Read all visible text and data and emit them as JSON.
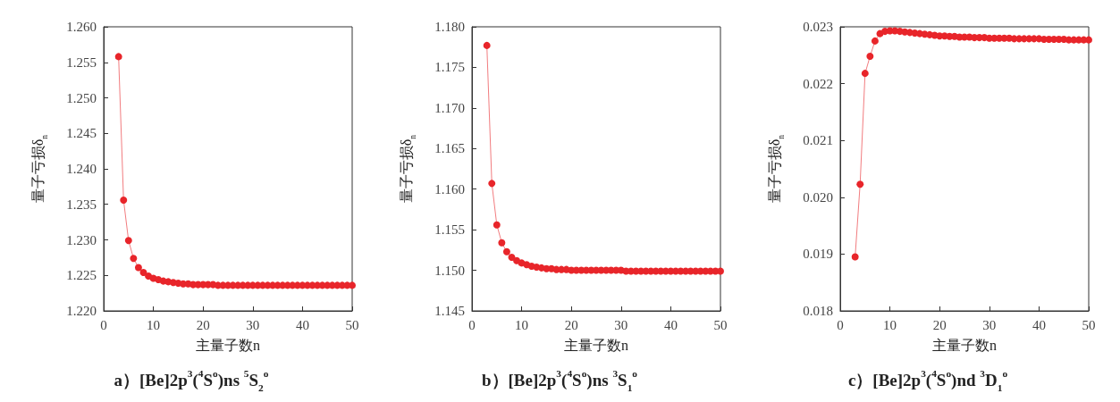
{
  "chart_data": [
    {
      "type": "line",
      "title": "a）[Be]2p$^{3}$($^{4}$S$^{o}$)ns $^{5}$S$_{2}$$^{o}$",
      "xlabel": "主量子数n",
      "ylabel": "量子亏损δ$_{n}$",
      "color": "#e8252a",
      "marker": "circle",
      "line_style": "solid",
      "x": [
        3,
        4,
        5,
        6,
        7,
        8,
        9,
        10,
        11,
        12,
        13,
        14,
        15,
        16,
        17,
        18,
        19,
        20,
        21,
        22,
        23,
        24,
        25,
        26,
        27,
        28,
        29,
        30,
        31,
        32,
        33,
        34,
        35,
        36,
        37,
        38,
        39,
        40,
        41,
        42,
        43,
        44,
        45,
        46,
        47,
        48,
        49,
        50
      ],
      "values": [
        1.2558,
        1.2356,
        1.2299,
        1.2274,
        1.2261,
        1.2254,
        1.2249,
        1.2246,
        1.2244,
        1.2242,
        1.2241,
        1.224,
        1.2239,
        1.2238,
        1.2238,
        1.2237,
        1.2237,
        1.2237,
        1.2237,
        1.2237,
        1.2236,
        1.2236,
        1.2236,
        1.2236,
        1.2236,
        1.2236,
        1.2236,
        1.2236,
        1.2236,
        1.2236,
        1.2236,
        1.2236,
        1.2236,
        1.2236,
        1.2236,
        1.2236,
        1.2236,
        1.2236,
        1.2236,
        1.2236,
        1.2236,
        1.2236,
        1.2236,
        1.2236,
        1.2236,
        1.2236,
        1.2236,
        1.2236
      ],
      "xlim": [
        0,
        50
      ],
      "xticks": [
        0,
        10,
        20,
        30,
        40,
        50
      ],
      "ylim": [
        1.22,
        1.26
      ],
      "yticks": [
        {
          "value": 1.22,
          "label": "1.220"
        },
        {
          "value": 1.225,
          "label": "1.225"
        },
        {
          "value": 1.23,
          "label": "1.230"
        },
        {
          "value": 1.235,
          "label": "1.235"
        },
        {
          "value": 1.24,
          "label": "1.240"
        },
        {
          "value": 1.245,
          "label": "1.245"
        },
        {
          "value": 1.25,
          "label": "1.250"
        },
        {
          "value": 1.255,
          "label": "1.255"
        },
        {
          "value": 1.26,
          "label": "1.260"
        }
      ]
    },
    {
      "type": "line",
      "title": "b）[Be]2p$^{3}$($^{4}$S$^{o}$)ns $^{3}$S$_{1}$$^{o}$",
      "xlabel": "主量子数n",
      "ylabel": "量子亏损δ$_{n}$",
      "color": "#e8252a",
      "marker": "circle",
      "line_style": "solid",
      "x": [
        3,
        4,
        5,
        6,
        7,
        8,
        9,
        10,
        11,
        12,
        13,
        14,
        15,
        16,
        17,
        18,
        19,
        20,
        21,
        22,
        23,
        24,
        25,
        26,
        27,
        28,
        29,
        30,
        31,
        32,
        33,
        34,
        35,
        36,
        37,
        38,
        39,
        40,
        41,
        42,
        43,
        44,
        45,
        46,
        47,
        48,
        49,
        50
      ],
      "values": [
        1.1777,
        1.1607,
        1.1556,
        1.1534,
        1.1523,
        1.1516,
        1.1512,
        1.1509,
        1.1507,
        1.1505,
        1.1504,
        1.1503,
        1.1502,
        1.1502,
        1.1501,
        1.1501,
        1.1501,
        1.15,
        1.15,
        1.15,
        1.15,
        1.15,
        1.15,
        1.15,
        1.15,
        1.15,
        1.15,
        1.15,
        1.1499,
        1.1499,
        1.1499,
        1.1499,
        1.1499,
        1.1499,
        1.1499,
        1.1499,
        1.1499,
        1.1499,
        1.1499,
        1.1499,
        1.1499,
        1.1499,
        1.1499,
        1.1499,
        1.1499,
        1.1499,
        1.1499,
        1.1499
      ],
      "xlim": [
        0,
        50
      ],
      "xticks": [
        0,
        10,
        20,
        30,
        40,
        50
      ],
      "ylim": [
        1.145,
        1.18
      ],
      "yticks": [
        {
          "value": 1.145,
          "label": "1.145"
        },
        {
          "value": 1.15,
          "label": "1.150"
        },
        {
          "value": 1.155,
          "label": "1.155"
        },
        {
          "value": 1.16,
          "label": "1.160"
        },
        {
          "value": 1.165,
          "label": "1.165"
        },
        {
          "value": 1.17,
          "label": "1.170"
        },
        {
          "value": 1.175,
          "label": "1.175"
        },
        {
          "value": 1.18,
          "label": "1.180"
        }
      ]
    },
    {
      "type": "line",
      "title": "c）[Be]2p$^{3}$($^{4}$S$^{o}$)nd $^{3}$D$_{1}$$^{o}$",
      "xlabel": "主量子数n",
      "ylabel": "量子亏损δ$_{n}$",
      "color": "#e8252a",
      "marker": "circle",
      "line_style": "solid",
      "x": [
        3,
        4,
        5,
        6,
        7,
        8,
        9,
        10,
        11,
        12,
        13,
        14,
        15,
        16,
        17,
        18,
        19,
        20,
        21,
        22,
        23,
        24,
        25,
        26,
        27,
        28,
        29,
        30,
        31,
        32,
        33,
        34,
        35,
        36,
        37,
        38,
        39,
        40,
        41,
        42,
        43,
        44,
        45,
        46,
        47,
        48,
        49,
        50
      ],
      "values": [
        0.01895,
        0.02023,
        0.02218,
        0.02248,
        0.02275,
        0.02288,
        0.02292,
        0.02293,
        0.02293,
        0.02292,
        0.02291,
        0.0229,
        0.02289,
        0.02288,
        0.02287,
        0.02286,
        0.02285,
        0.02284,
        0.02284,
        0.02283,
        0.02283,
        0.02282,
        0.02282,
        0.02282,
        0.02281,
        0.02281,
        0.02281,
        0.0228,
        0.0228,
        0.0228,
        0.0228,
        0.0228,
        0.02279,
        0.02279,
        0.02279,
        0.02279,
        0.02279,
        0.02279,
        0.02278,
        0.02278,
        0.02278,
        0.02278,
        0.02278,
        0.02277,
        0.02277,
        0.02277,
        0.02277,
        0.02277
      ],
      "xlim": [
        0,
        50
      ],
      "xticks": [
        0,
        10,
        20,
        30,
        40,
        50
      ],
      "ylim": [
        0.018,
        0.023
      ],
      "yticks": [
        {
          "value": 0.018,
          "label": "0.018"
        },
        {
          "value": 0.019,
          "label": "0.019"
        },
        {
          "value": 0.02,
          "label": "0.020"
        },
        {
          "value": 0.021,
          "label": "0.021"
        },
        {
          "value": 0.022,
          "label": "0.022"
        },
        {
          "value": 0.023,
          "label": "0.023"
        }
      ]
    }
  ]
}
